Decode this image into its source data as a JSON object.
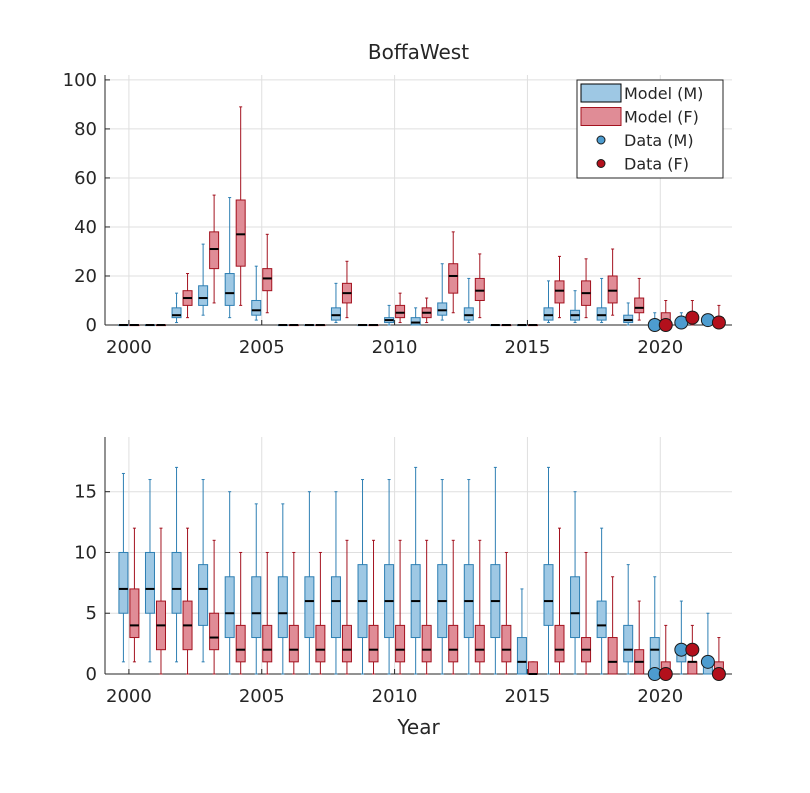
{
  "chart_data": [
    {
      "type": "box",
      "title": "BoffaWest",
      "xlabel": "",
      "ylabel": "",
      "xlim": [
        1999.1,
        2022.7
      ],
      "ylim": [
        0,
        102
      ],
      "xticks": [
        2000,
        2005,
        2010,
        2015,
        2020
      ],
      "yticks": [
        0,
        20,
        40,
        60,
        80,
        100
      ],
      "grid": true,
      "legend": {
        "position": "top-right",
        "entries": [
          "Model (M)",
          "Model (F)",
          "Data (M)",
          "Data (F)"
        ]
      },
      "colors": {
        "model_m_fill": "#9ec8e4",
        "model_m_edge": "#2e7fb3",
        "model_f_fill": "#e08c96",
        "model_f_edge": "#a3121f",
        "data_m": "#4d9ccf",
        "data_f": "#b3101c"
      },
      "series": [
        {
          "name": "Model (M)",
          "boxes": [
            {
              "x": 2000,
              "wlo": 0,
              "q1": 0,
              "med": 0,
              "q3": 0,
              "whi": 0
            },
            {
              "x": 2001,
              "wlo": 0,
              "q1": 0,
              "med": 0,
              "q3": 0,
              "whi": 0
            },
            {
              "x": 2002,
              "wlo": 1,
              "q1": 3,
              "med": 4,
              "q3": 7,
              "whi": 13
            },
            {
              "x": 2003,
              "wlo": 4,
              "q1": 8,
              "med": 11,
              "q3": 16,
              "whi": 33
            },
            {
              "x": 2004,
              "wlo": 3,
              "q1": 8,
              "med": 13,
              "q3": 21,
              "whi": 52
            },
            {
              "x": 2005,
              "wlo": 2,
              "q1": 4,
              "med": 6,
              "q3": 10,
              "whi": 24
            },
            {
              "x": 2006,
              "wlo": 0,
              "q1": 0,
              "med": 0,
              "q3": 0,
              "whi": 0
            },
            {
              "x": 2007,
              "wlo": 0,
              "q1": 0,
              "med": 0,
              "q3": 0,
              "whi": 0
            },
            {
              "x": 2008,
              "wlo": 1,
              "q1": 2,
              "med": 4,
              "q3": 7,
              "whi": 17
            },
            {
              "x": 2009,
              "wlo": 0,
              "q1": 0,
              "med": 0,
              "q3": 0,
              "whi": 0
            },
            {
              "x": 2010,
              "wlo": 0,
              "q1": 1,
              "med": 2,
              "q3": 3,
              "whi": 8
            },
            {
              "x": 2011,
              "wlo": 0,
              "q1": 0,
              "med": 1,
              "q3": 3,
              "whi": 7
            },
            {
              "x": 2012,
              "wlo": 2,
              "q1": 4,
              "med": 6,
              "q3": 9,
              "whi": 25
            },
            {
              "x": 2013,
              "wlo": 1,
              "q1": 2,
              "med": 4,
              "q3": 7,
              "whi": 19
            },
            {
              "x": 2014,
              "wlo": 0,
              "q1": 0,
              "med": 0,
              "q3": 0,
              "whi": 0
            },
            {
              "x": 2015,
              "wlo": 0,
              "q1": 0,
              "med": 0,
              "q3": 0,
              "whi": 0
            },
            {
              "x": 2016,
              "wlo": 1,
              "q1": 2,
              "med": 4,
              "q3": 7,
              "whi": 18
            },
            {
              "x": 2017,
              "wlo": 1,
              "q1": 2,
              "med": 4,
              "q3": 6,
              "whi": 14
            },
            {
              "x": 2018,
              "wlo": 1,
              "q1": 2,
              "med": 4,
              "q3": 7,
              "whi": 19
            },
            {
              "x": 2019,
              "wlo": 0,
              "q1": 1,
              "med": 2,
              "q3": 4,
              "whi": 9
            },
            {
              "x": 2020,
              "wlo": 0,
              "q1": 0,
              "med": 1,
              "q3": 2,
              "whi": 5
            },
            {
              "x": 2021,
              "wlo": 0,
              "q1": 0,
              "med": 1,
              "q3": 2,
              "whi": 5
            },
            {
              "x": 2022,
              "wlo": 0,
              "q1": 1,
              "med": 2,
              "q3": 3,
              "whi": 4
            }
          ]
        },
        {
          "name": "Model (F)",
          "boxes": [
            {
              "x": 2000,
              "wlo": 0,
              "q1": 0,
              "med": 0,
              "q3": 0,
              "whi": 0
            },
            {
              "x": 2001,
              "wlo": 0,
              "q1": 0,
              "med": 0,
              "q3": 0,
              "whi": 0
            },
            {
              "x": 2002,
              "wlo": 3,
              "q1": 8,
              "med": 11,
              "q3": 14,
              "whi": 21
            },
            {
              "x": 2003,
              "wlo": 9,
              "q1": 23,
              "med": 31,
              "q3": 38,
              "whi": 53
            },
            {
              "x": 2004,
              "wlo": 8,
              "q1": 24,
              "med": 37,
              "q3": 51,
              "whi": 89
            },
            {
              "x": 2005,
              "wlo": 5,
              "q1": 14,
              "med": 19,
              "q3": 23,
              "whi": 37
            },
            {
              "x": 2006,
              "wlo": 0,
              "q1": 0,
              "med": 0,
              "q3": 0,
              "whi": 0
            },
            {
              "x": 2007,
              "wlo": 0,
              "q1": 0,
              "med": 0,
              "q3": 0,
              "whi": 0
            },
            {
              "x": 2008,
              "wlo": 3,
              "q1": 9,
              "med": 13,
              "q3": 17,
              "whi": 26
            },
            {
              "x": 2009,
              "wlo": 0,
              "q1": 0,
              "med": 0,
              "q3": 0,
              "whi": 0
            },
            {
              "x": 2010,
              "wlo": 1,
              "q1": 3,
              "med": 5,
              "q3": 8,
              "whi": 13
            },
            {
              "x": 2011,
              "wlo": 1,
              "q1": 3,
              "med": 5,
              "q3": 7,
              "whi": 11
            },
            {
              "x": 2012,
              "wlo": 5,
              "q1": 13,
              "med": 20,
              "q3": 25,
              "whi": 38
            },
            {
              "x": 2013,
              "wlo": 3,
              "q1": 10,
              "med": 14,
              "q3": 19,
              "whi": 29
            },
            {
              "x": 2014,
              "wlo": 0,
              "q1": 0,
              "med": 0,
              "q3": 0,
              "whi": 0
            },
            {
              "x": 2015,
              "wlo": 0,
              "q1": 0,
              "med": 0,
              "q3": 0,
              "whi": 0
            },
            {
              "x": 2016,
              "wlo": 3,
              "q1": 9,
              "med": 14,
              "q3": 18,
              "whi": 28
            },
            {
              "x": 2017,
              "wlo": 3,
              "q1": 8,
              "med": 13,
              "q3": 18,
              "whi": 27
            },
            {
              "x": 2018,
              "wlo": 4,
              "q1": 9,
              "med": 14,
              "q3": 20,
              "whi": 31
            },
            {
              "x": 2019,
              "wlo": 2,
              "q1": 5,
              "med": 7,
              "q3": 11,
              "whi": 19
            },
            {
              "x": 2020,
              "wlo": 0,
              "q1": 1,
              "med": 2,
              "q3": 5,
              "whi": 10
            },
            {
              "x": 2021,
              "wlo": 0,
              "q1": 2,
              "med": 3,
              "q3": 5,
              "whi": 10
            },
            {
              "x": 2022,
              "wlo": 0,
              "q1": 1,
              "med": 2,
              "q3": 3,
              "whi": 8
            }
          ]
        }
      ],
      "points": [
        {
          "name": "Data (M)",
          "x": [
            2020,
            2021,
            2022
          ],
          "y": [
            0,
            1,
            2
          ]
        },
        {
          "name": "Data (F)",
          "x": [
            2020,
            2021,
            2022
          ],
          "y": [
            0,
            3,
            1
          ]
        }
      ]
    },
    {
      "type": "box",
      "title": "",
      "xlabel": "Year",
      "ylabel": "",
      "xlim": [
        1999.1,
        2022.7
      ],
      "ylim": [
        0,
        19.5
      ],
      "xticks": [
        2000,
        2005,
        2010,
        2015,
        2020
      ],
      "yticks": [
        0,
        5,
        10,
        15
      ],
      "grid": true,
      "series": [
        {
          "name": "Model (M)",
          "boxes": [
            {
              "x": 2000,
              "wlo": 1,
              "q1": 5,
              "med": 7,
              "q3": 10,
              "whi": 16.5
            },
            {
              "x": 2001,
              "wlo": 1,
              "q1": 5,
              "med": 7,
              "q3": 10,
              "whi": 16
            },
            {
              "x": 2002,
              "wlo": 1,
              "q1": 5,
              "med": 7,
              "q3": 10,
              "whi": 17
            },
            {
              "x": 2003,
              "wlo": 1,
              "q1": 4,
              "med": 7,
              "q3": 9,
              "whi": 16
            },
            {
              "x": 2004,
              "wlo": 0,
              "q1": 3,
              "med": 5,
              "q3": 8,
              "whi": 15
            },
            {
              "x": 2005,
              "wlo": 0,
              "q1": 3,
              "med": 5,
              "q3": 8,
              "whi": 14
            },
            {
              "x": 2006,
              "wlo": 0,
              "q1": 3,
              "med": 5,
              "q3": 8,
              "whi": 14
            },
            {
              "x": 2007,
              "wlo": 0,
              "q1": 3,
              "med": 6,
              "q3": 8,
              "whi": 15
            },
            {
              "x": 2008,
              "wlo": 0,
              "q1": 3,
              "med": 6,
              "q3": 8,
              "whi": 15
            },
            {
              "x": 2009,
              "wlo": 0,
              "q1": 3,
              "med": 6,
              "q3": 9,
              "whi": 16
            },
            {
              "x": 2010,
              "wlo": 0,
              "q1": 3,
              "med": 6,
              "q3": 9,
              "whi": 16
            },
            {
              "x": 2011,
              "wlo": 0,
              "q1": 3,
              "med": 6,
              "q3": 9,
              "whi": 17
            },
            {
              "x": 2012,
              "wlo": 0,
              "q1": 3,
              "med": 6,
              "q3": 9,
              "whi": 16
            },
            {
              "x": 2013,
              "wlo": 0,
              "q1": 3,
              "med": 6,
              "q3": 9,
              "whi": 16
            },
            {
              "x": 2014,
              "wlo": 0,
              "q1": 3,
              "med": 6,
              "q3": 9,
              "whi": 17
            },
            {
              "x": 2015,
              "wlo": 0,
              "q1": 0,
              "med": 1,
              "q3": 3,
              "whi": 7
            },
            {
              "x": 2016,
              "wlo": 0,
              "q1": 4,
              "med": 6,
              "q3": 9,
              "whi": 17
            },
            {
              "x": 2017,
              "wlo": 0,
              "q1": 3,
              "med": 5,
              "q3": 8,
              "whi": 15
            },
            {
              "x": 2018,
              "wlo": 0,
              "q1": 3,
              "med": 4,
              "q3": 6,
              "whi": 12
            },
            {
              "x": 2019,
              "wlo": 0,
              "q1": 1,
              "med": 2,
              "q3": 4,
              "whi": 9
            },
            {
              "x": 2020,
              "wlo": 0,
              "q1": 0,
              "med": 2,
              "q3": 3,
              "whi": 8
            },
            {
              "x": 2021,
              "wlo": 0,
              "q1": 1,
              "med": 2,
              "q3": 2,
              "whi": 6
            },
            {
              "x": 2022,
              "wlo": 0,
              "q1": 0,
              "med": 1,
              "q3": 1,
              "whi": 5
            }
          ]
        },
        {
          "name": "Model (F)",
          "boxes": [
            {
              "x": 2000,
              "wlo": 1,
              "q1": 3,
              "med": 4,
              "q3": 7,
              "whi": 12
            },
            {
              "x": 2001,
              "wlo": 0,
              "q1": 2,
              "med": 4,
              "q3": 6,
              "whi": 12
            },
            {
              "x": 2002,
              "wlo": 0,
              "q1": 2,
              "med": 4,
              "q3": 6,
              "whi": 12
            },
            {
              "x": 2003,
              "wlo": 0,
              "q1": 2,
              "med": 3,
              "q3": 5,
              "whi": 11
            },
            {
              "x": 2004,
              "wlo": 0,
              "q1": 1,
              "med": 2,
              "q3": 4,
              "whi": 10
            },
            {
              "x": 2005,
              "wlo": 0,
              "q1": 1,
              "med": 2,
              "q3": 4,
              "whi": 10
            },
            {
              "x": 2006,
              "wlo": 0,
              "q1": 1,
              "med": 2,
              "q3": 4,
              "whi": 10
            },
            {
              "x": 2007,
              "wlo": 0,
              "q1": 1,
              "med": 2,
              "q3": 4,
              "whi": 10
            },
            {
              "x": 2008,
              "wlo": 0,
              "q1": 1,
              "med": 2,
              "q3": 4,
              "whi": 11
            },
            {
              "x": 2009,
              "wlo": 0,
              "q1": 1,
              "med": 2,
              "q3": 4,
              "whi": 11
            },
            {
              "x": 2010,
              "wlo": 0,
              "q1": 1,
              "med": 2,
              "q3": 4,
              "whi": 11
            },
            {
              "x": 2011,
              "wlo": 0,
              "q1": 1,
              "med": 2,
              "q3": 4,
              "whi": 11
            },
            {
              "x": 2012,
              "wlo": 0,
              "q1": 1,
              "med": 2,
              "q3": 4,
              "whi": 11
            },
            {
              "x": 2013,
              "wlo": 0,
              "q1": 1,
              "med": 2,
              "q3": 4,
              "whi": 11
            },
            {
              "x": 2014,
              "wlo": 0,
              "q1": 1,
              "med": 2,
              "q3": 4,
              "whi": 10
            },
            {
              "x": 2015,
              "wlo": 0,
              "q1": 0,
              "med": 0,
              "q3": 1,
              "whi": 1
            },
            {
              "x": 2016,
              "wlo": 0,
              "q1": 1,
              "med": 2,
              "q3": 4,
              "whi": 12
            },
            {
              "x": 2017,
              "wlo": 0,
              "q1": 1,
              "med": 2,
              "q3": 3,
              "whi": 10
            },
            {
              "x": 2018,
              "wlo": 0,
              "q1": 0,
              "med": 1,
              "q3": 3,
              "whi": 8
            },
            {
              "x": 2019,
              "wlo": 0,
              "q1": 0,
              "med": 1,
              "q3": 2,
              "whi": 6
            },
            {
              "x": 2020,
              "wlo": 0,
              "q1": 0,
              "med": 0,
              "q3": 1,
              "whi": 4
            },
            {
              "x": 2021,
              "wlo": 0,
              "q1": 0,
              "med": 1,
              "q3": 1,
              "whi": 4
            },
            {
              "x": 2022,
              "wlo": 0,
              "q1": 0,
              "med": 0,
              "q3": 1,
              "whi": 3
            }
          ]
        }
      ],
      "points": [
        {
          "name": "Data (M)",
          "x": [
            2020,
            2021,
            2022
          ],
          "y": [
            0,
            2,
            1
          ]
        },
        {
          "name": "Data (F)",
          "x": [
            2020,
            2021,
            2022
          ],
          "y": [
            0,
            2,
            0
          ]
        }
      ]
    }
  ]
}
